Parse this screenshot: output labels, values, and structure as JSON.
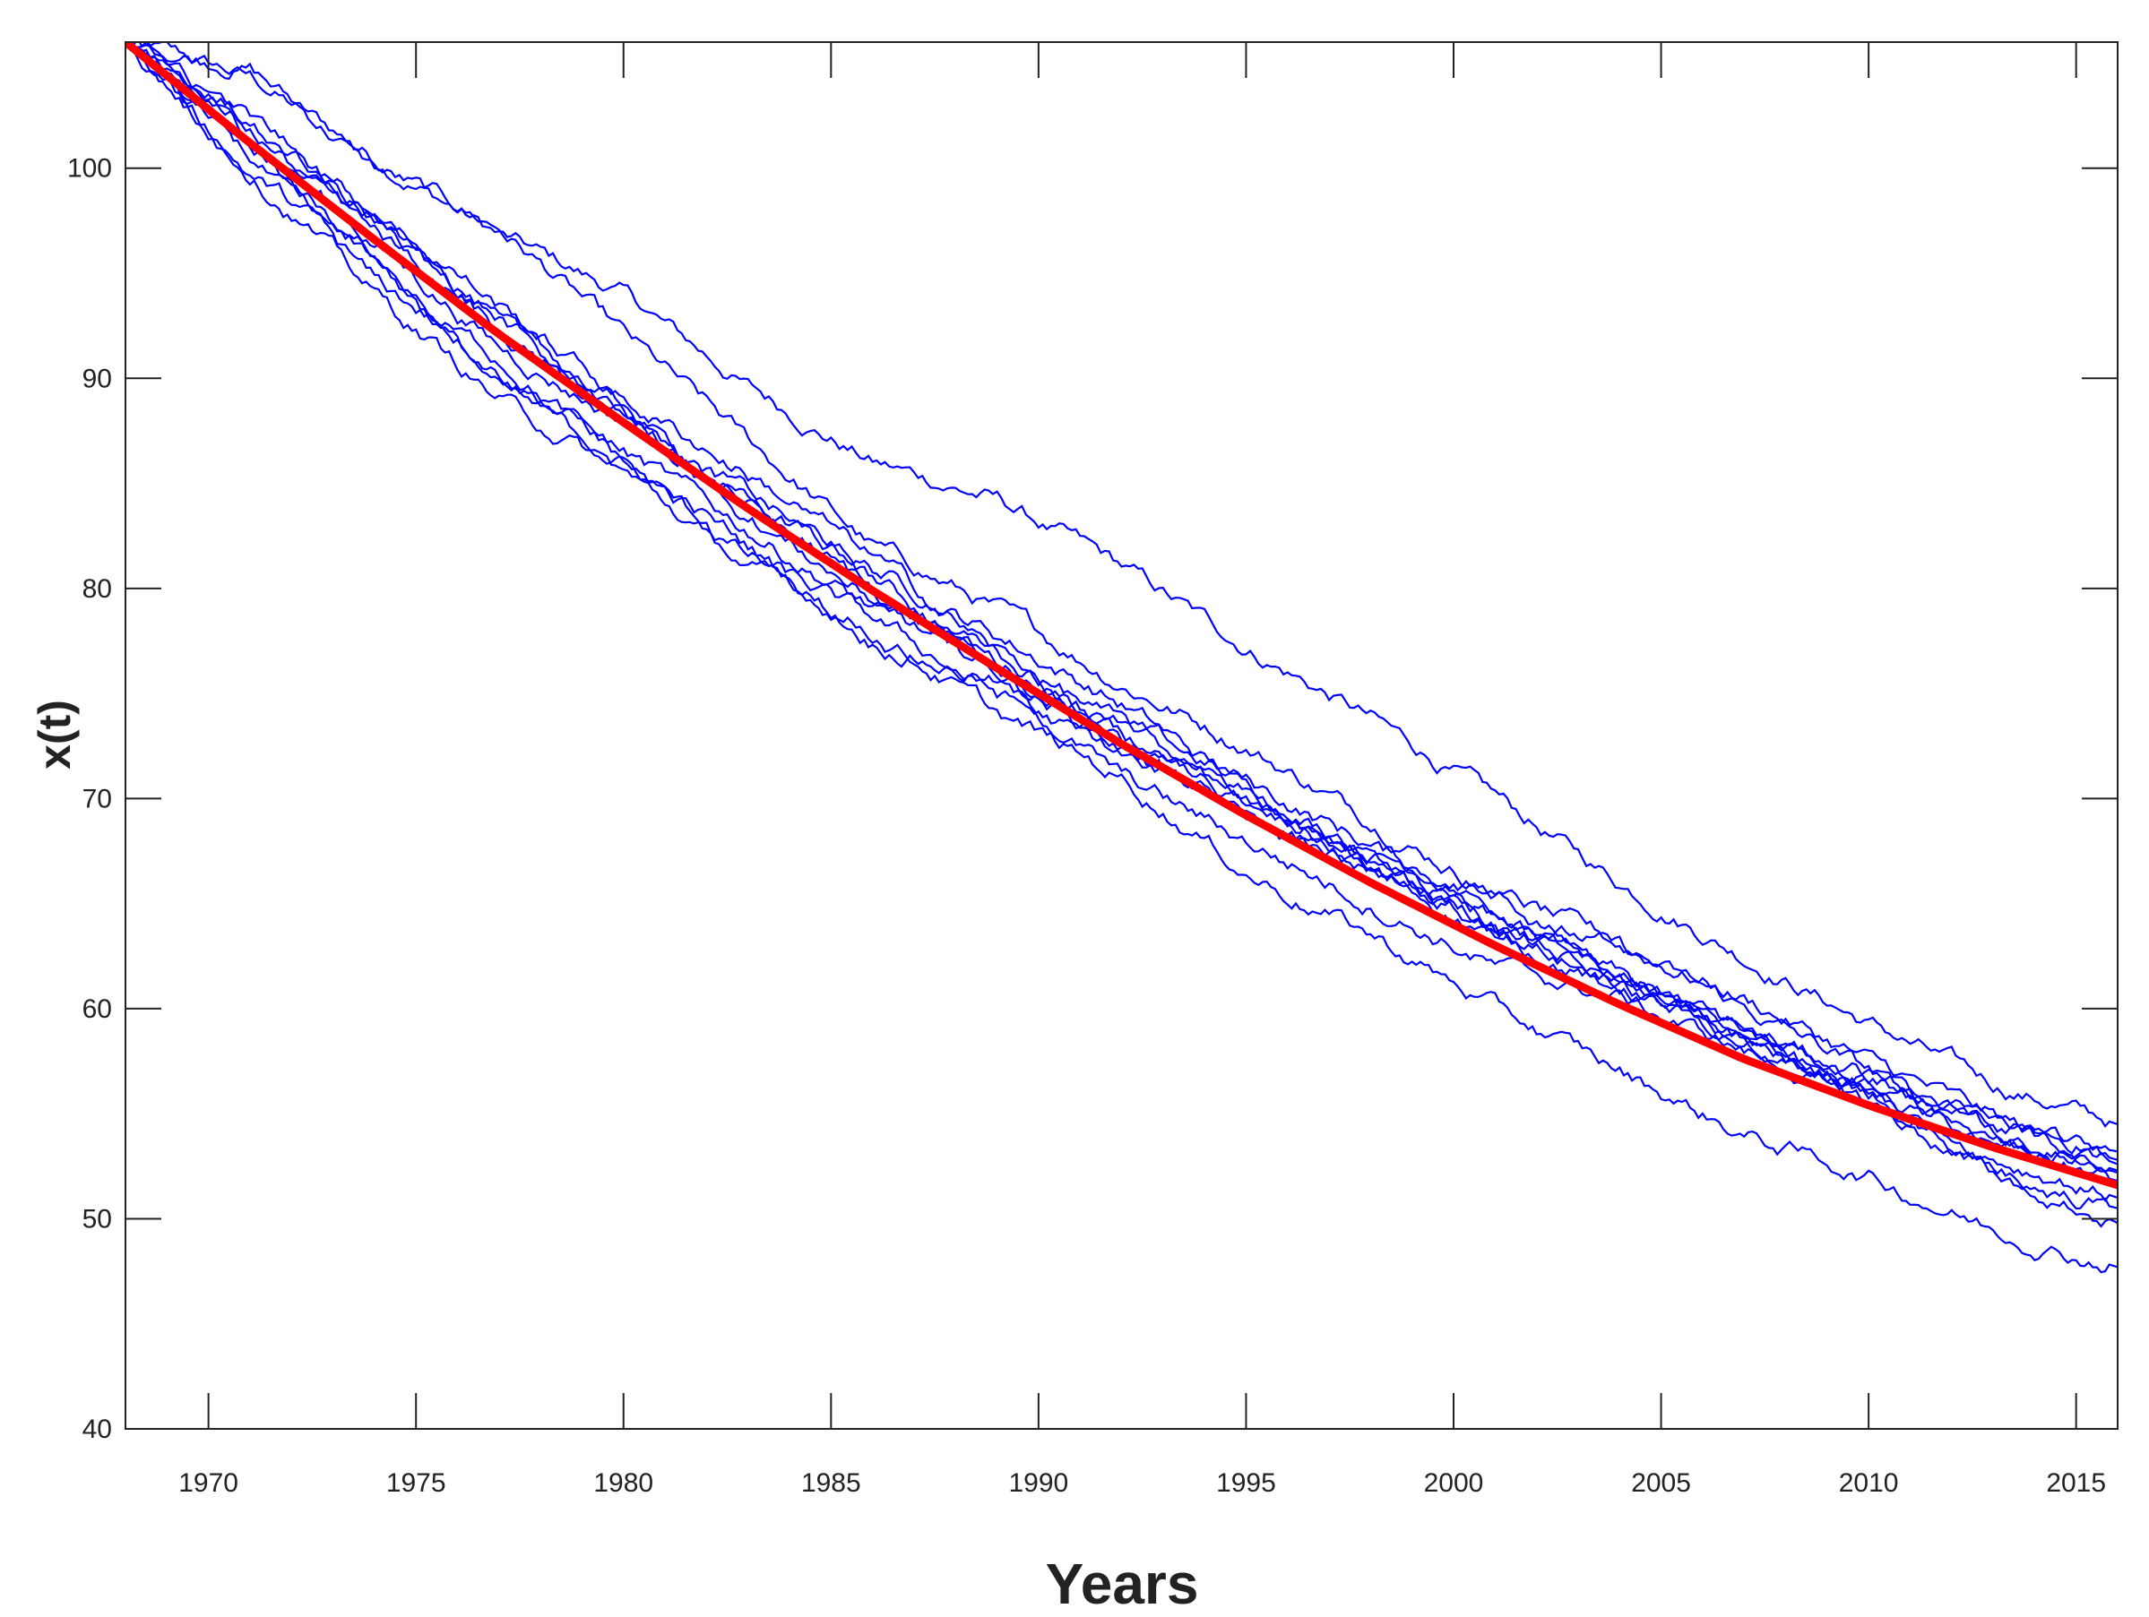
{
  "chart_data": {
    "type": "line",
    "xlabel": "Years",
    "ylabel": "x(t)",
    "xlim": [
      1968,
      2016
    ],
    "ylim": [
      40,
      106
    ],
    "x_ticks": [
      1970,
      1975,
      1980,
      1985,
      1990,
      1995,
      2000,
      2005,
      2010,
      2015
    ],
    "y_ticks": [
      40,
      50,
      60,
      70,
      80,
      90,
      100
    ],
    "x_tick_labels": [
      "1970",
      "1975",
      "1980",
      "1985",
      "1990",
      "1995",
      "2000",
      "2005",
      "2010",
      "2015"
    ],
    "y_tick_labels": [
      "40",
      "50",
      "60",
      "70",
      "80",
      "90",
      "100"
    ],
    "grid": false,
    "legend": "none",
    "colors": {
      "simulations": "#0000ff",
      "mean": "#ff0000",
      "axis": "#222222"
    },
    "x": [
      1968,
      1971,
      1974,
      1977,
      1980,
      1983,
      1986,
      1989,
      1992,
      1995,
      1998,
      2001,
      2004,
      2007,
      2010,
      2013,
      2016
    ],
    "series": [
      {
        "style": "mean",
        "values": [
          106.0,
          101.2,
          96.6,
          92.1,
          87.9,
          83.8,
          79.9,
          76.2,
          72.6,
          69.2,
          66.0,
          63.0,
          60.2,
          57.6,
          55.4,
          53.4,
          51.6
        ]
      },
      {
        "style": "simulation",
        "values": [
          106.0,
          104.3,
          100.5,
          96.8,
          94.0,
          89.6,
          86.0,
          84.2,
          81.0,
          77.2,
          73.8,
          70.0,
          66.0,
          62.5,
          59.3,
          56.4,
          54.5
        ]
      },
      {
        "style": "simulation",
        "values": [
          106.0,
          104.8,
          100.0,
          97.2,
          92.0,
          87.0,
          82.0,
          79.0,
          75.5,
          72.5,
          69.0,
          65.5,
          61.5,
          58.5,
          56.5,
          54.3,
          53.2
        ]
      },
      {
        "style": "simulation",
        "values": [
          106.0,
          100.8,
          97.8,
          92.5,
          88.0,
          84.0,
          81.0,
          77.8,
          74.5,
          70.5,
          67.5,
          65.5,
          63.0,
          60.5,
          57.5,
          54.8,
          52.6
        ]
      },
      {
        "style": "simulation",
        "values": [
          106.0,
          101.5,
          96.5,
          91.5,
          88.0,
          84.5,
          80.5,
          76.5,
          73.5,
          70.8,
          67.8,
          64.8,
          62.8,
          60.0,
          57.0,
          53.8,
          52.2
        ]
      },
      {
        "style": "simulation",
        "values": [
          106.0,
          99.8,
          95.5,
          90.5,
          86.5,
          82.8,
          79.0,
          76.0,
          72.5,
          69.0,
          66.5,
          63.5,
          61.0,
          58.5,
          56.0,
          53.5,
          51.8
        ]
      },
      {
        "style": "simulation",
        "values": [
          106.0,
          100.5,
          94.5,
          91.0,
          86.0,
          81.5,
          78.5,
          75.0,
          72.0,
          69.5,
          66.5,
          63.8,
          61.5,
          58.5,
          56.0,
          53.0,
          51.0
        ]
      },
      {
        "style": "simulation",
        "values": [
          106.0,
          101.0,
          96.0,
          89.5,
          86.0,
          82.0,
          77.5,
          75.5,
          71.0,
          68.0,
          65.0,
          62.0,
          60.5,
          58.0,
          55.5,
          52.0,
          50.5
        ]
      },
      {
        "style": "simulation",
        "values": [
          106.0,
          102.0,
          97.5,
          92.5,
          88.5,
          84.0,
          80.0,
          76.0,
          72.8,
          70.0,
          66.8,
          64.0,
          61.0,
          58.5,
          56.0,
          52.5,
          49.8
        ]
      },
      {
        "style": "simulation",
        "values": [
          106.0,
          100.0,
          94.0,
          89.0,
          85.5,
          81.0,
          78.0,
          74.0,
          71.0,
          66.5,
          63.5,
          60.0,
          57.0,
          54.0,
          52.0,
          49.5,
          47.7
        ]
      },
      {
        "style": "simulation",
        "values": [
          106.0,
          102.5,
          98.0,
          93.5,
          89.0,
          85.5,
          81.5,
          77.0,
          73.5,
          69.8,
          66.8,
          64.5,
          61.5,
          59.0,
          56.5,
          54.0,
          52.3
        ]
      },
      {
        "style": "simulation",
        "values": [
          106.0,
          101.8,
          96.8,
          92.8,
          88.5,
          83.5,
          79.5,
          77.0,
          73.0,
          70.3,
          67.2,
          63.8,
          61.8,
          58.8,
          56.8,
          54.5,
          52.8
        ]
      }
    ]
  }
}
